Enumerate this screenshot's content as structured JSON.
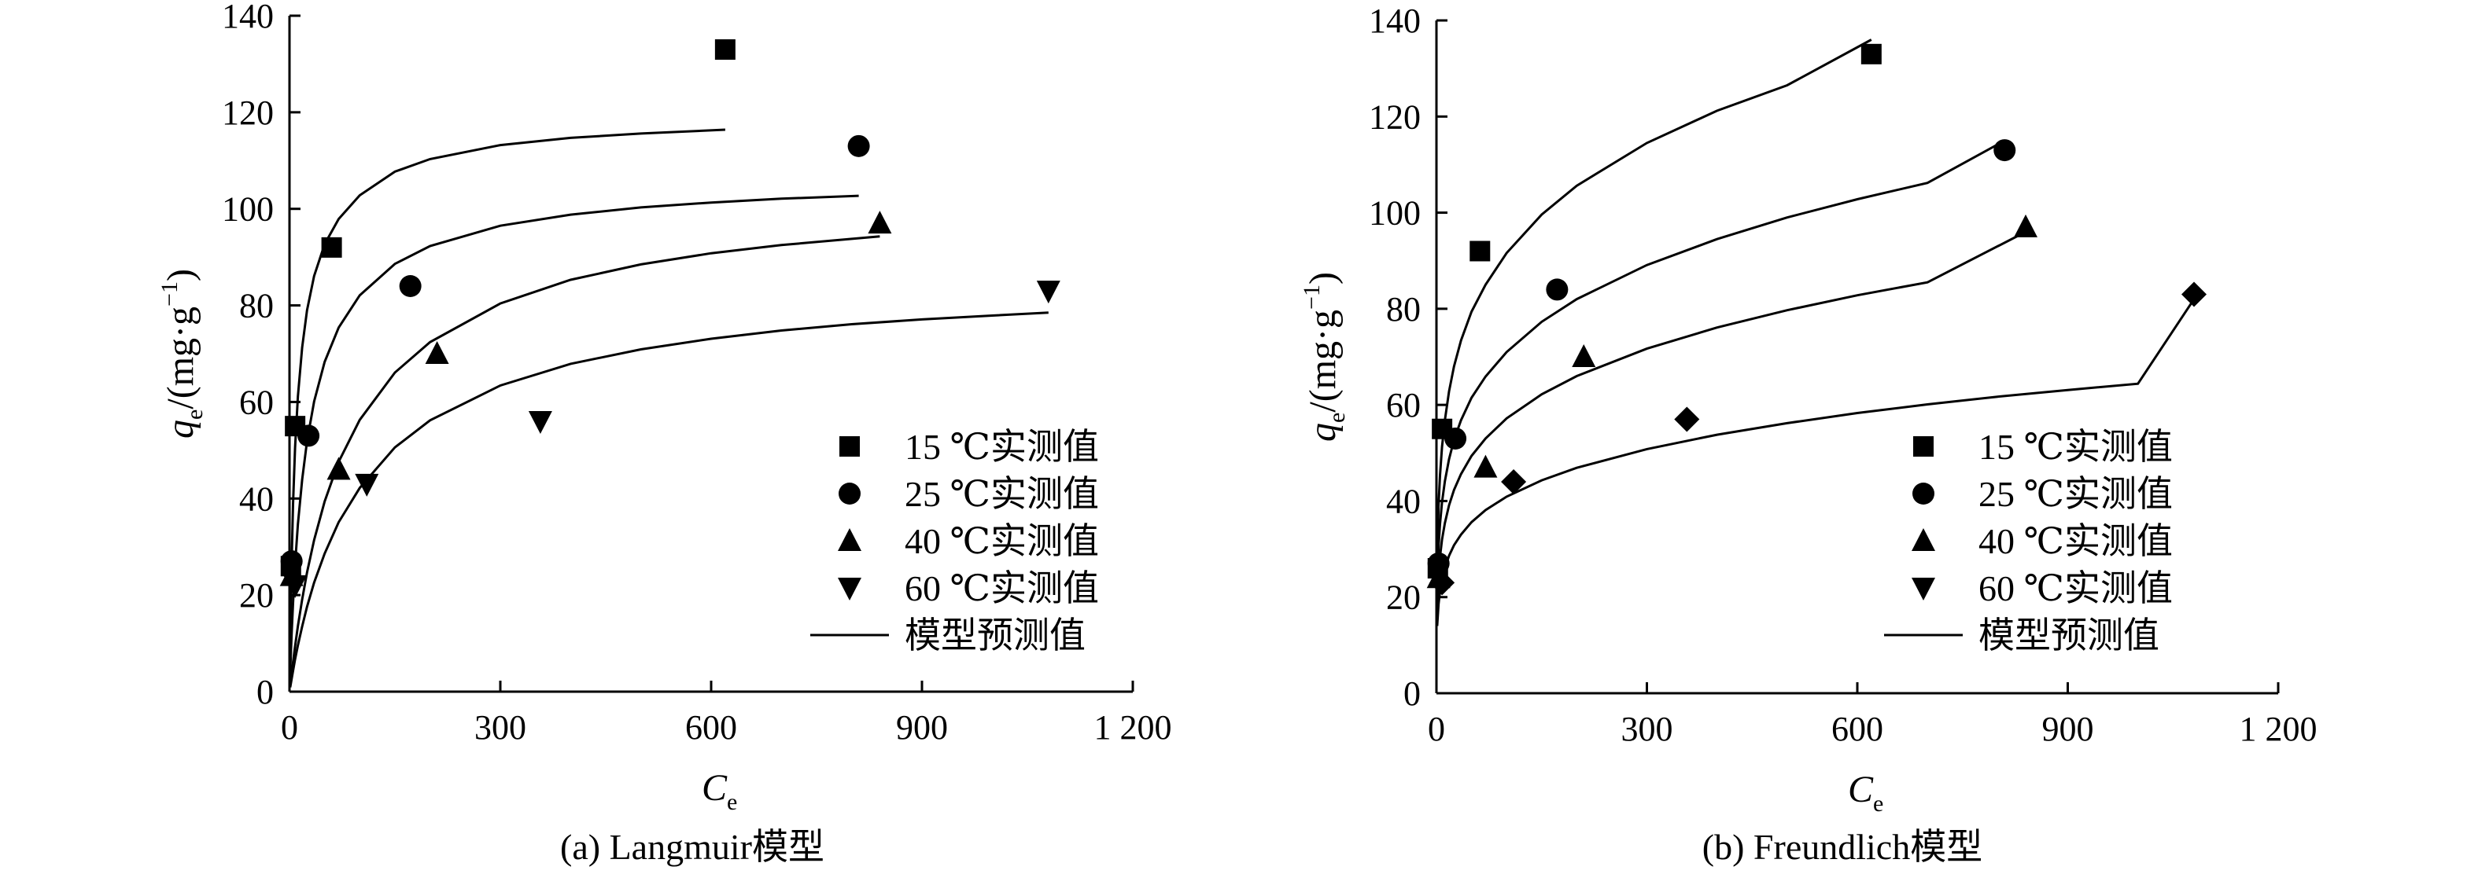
{
  "chart_data": [
    {
      "type": "scatter",
      "panel": "a",
      "caption": "(a) Langmuir模型",
      "xlabel": {
        "main": "C",
        "sub": "e"
      },
      "ylabel": {
        "main": "q",
        "sub": "e",
        "rest": "/(mg·g",
        "sup": "−1",
        "end": ")"
      },
      "xlim": [
        0,
        1200
      ],
      "ylim": [
        0,
        140
      ],
      "xticks": [
        {
          "value": 0,
          "label": "0"
        },
        {
          "value": 300,
          "label": "300"
        },
        {
          "value": 600,
          "label": "600"
        },
        {
          "value": 900,
          "label": "900"
        },
        {
          "value": 1200,
          "label": "1 200"
        }
      ],
      "yticks": [
        {
          "value": 0,
          "label": "0"
        },
        {
          "value": 20,
          "label": "20"
        },
        {
          "value": 40,
          "label": "40"
        },
        {
          "value": 60,
          "label": "60"
        },
        {
          "value": 80,
          "label": "80"
        },
        {
          "value": 100,
          "label": "100"
        },
        {
          "value": 120,
          "label": "120"
        },
        {
          "value": 140,
          "label": "140"
        }
      ],
      "legend_position": "bottom-right",
      "legend": [
        {
          "label": "15 ℃实测值",
          "marker": "square"
        },
        {
          "label": "25 ℃实测值",
          "marker": "circle"
        },
        {
          "label": "40 ℃实测值",
          "marker": "triangle-up"
        },
        {
          "label": "60 ℃实测值",
          "marker": "triangle-down"
        },
        {
          "label": "模型预测值",
          "marker": "line"
        }
      ],
      "series": [
        {
          "marker": "square",
          "x": [
            2,
            8,
            60,
            620
          ],
          "y": [
            26,
            55,
            92,
            133
          ]
        },
        {
          "marker": "circle",
          "x": [
            3,
            27,
            172,
            810
          ],
          "y": [
            27,
            53,
            84,
            113
          ]
        },
        {
          "marker": "triangle-up",
          "x": [
            3,
            70,
            210,
            840
          ],
          "y": [
            24,
            46,
            70,
            97
          ]
        },
        {
          "marker": "triangle-down",
          "x": [
            8,
            110,
            357,
            1080
          ],
          "y": [
            22,
            43,
            56,
            83
          ]
        }
      ],
      "fits": [
        {
          "x": [
            1,
            3,
            5,
            8,
            12,
            18,
            25,
            35,
            50,
            70,
            100,
            150,
            200,
            300,
            400,
            500,
            620
          ],
          "y": [
            10.1,
            26.6,
            38.8,
            50.6,
            61.2,
            71.3,
            79.0,
            86.1,
            92.7,
            97.9,
            102.8,
            107.7,
            110.3,
            113.2,
            114.7,
            115.6,
            116.4
          ]
        },
        {
          "x": [
            1,
            3,
            5,
            8,
            12,
            18,
            25,
            35,
            50,
            70,
            100,
            150,
            200,
            300,
            400,
            500,
            600,
            700,
            810
          ],
          "y": [
            4.2,
            11.9,
            18.3,
            26.3,
            34.7,
            43.9,
            51.9,
            60.1,
            68.3,
            75.4,
            82.1,
            88.6,
            92.3,
            96.5,
            98.8,
            100.3,
            101.3,
            102.1,
            102.7
          ]
        },
        {
          "x": [
            1,
            3,
            5,
            8,
            12,
            18,
            25,
            35,
            50,
            70,
            100,
            150,
            200,
            300,
            400,
            500,
            600,
            700,
            840
          ],
          "y": [
            1.3,
            3.7,
            6.1,
            9.4,
            13.6,
            19.1,
            24.7,
            31.4,
            39.4,
            47.6,
            56.3,
            66.1,
            72.4,
            80.4,
            85.3,
            88.5,
            90.8,
            92.5,
            94.3
          ]
        },
        {
          "x": [
            1,
            3,
            5,
            8,
            12,
            18,
            25,
            35,
            50,
            70,
            100,
            150,
            200,
            300,
            400,
            500,
            600,
            700,
            800,
            900,
            1000,
            1080
          ],
          "y": [
            0.9,
            2.6,
            4.3,
            6.7,
            9.6,
            13.5,
            17.6,
            22.6,
            28.6,
            35.1,
            42.2,
            50.6,
            56.2,
            63.4,
            67.9,
            70.9,
            73.1,
            74.8,
            76.1,
            77.1,
            77.9,
            78.5
          ]
        }
      ]
    },
    {
      "type": "scatter",
      "panel": "b",
      "caption": "(b) Freundlich模型",
      "xlabel": {
        "main": "C",
        "sub": "e"
      },
      "ylabel": {
        "main": "q",
        "sub": "e",
        "rest": "/(mg·g",
        "sup": "−1",
        "end": ")"
      },
      "xlim": [
        0,
        1200
      ],
      "ylim": [
        0,
        140
      ],
      "xticks": [
        {
          "value": 0,
          "label": "0"
        },
        {
          "value": 300,
          "label": "300"
        },
        {
          "value": 600,
          "label": "600"
        },
        {
          "value": 900,
          "label": "900"
        },
        {
          "value": 1200,
          "label": "1 200"
        }
      ],
      "yticks": [
        {
          "value": 0,
          "label": "0"
        },
        {
          "value": 20,
          "label": "20"
        },
        {
          "value": 40,
          "label": "40"
        },
        {
          "value": 60,
          "label": "60"
        },
        {
          "value": 80,
          "label": "80"
        },
        {
          "value": 100,
          "label": "100"
        },
        {
          "value": 120,
          "label": "120"
        },
        {
          "value": 140,
          "label": "140"
        }
      ],
      "legend_position": "bottom-right",
      "legend": [
        {
          "label": "15 ℃实测值",
          "marker": "square"
        },
        {
          "label": "25 ℃实测值",
          "marker": "circle"
        },
        {
          "label": "40 ℃实测值",
          "marker": "triangle-up"
        },
        {
          "label": "60 ℃实测值",
          "marker": "triangle-down"
        },
        {
          "label": "模型预测值",
          "marker": "line"
        }
      ],
      "series": [
        {
          "marker": "square",
          "x": [
            2,
            8,
            62,
            620
          ],
          "y": [
            26,
            55,
            92,
            133
          ]
        },
        {
          "marker": "circle",
          "x": [
            3,
            27,
            172,
            810
          ],
          "y": [
            27,
            53,
            84,
            113
          ]
        },
        {
          "marker": "triangle-up",
          "x": [
            3,
            70,
            210,
            840
          ],
          "y": [
            24,
            47,
            70,
            97
          ]
        },
        {
          "marker": "diamond",
          "x": [
            8,
            110,
            357,
            1080
          ],
          "y": [
            23,
            44,
            57,
            83
          ]
        }
      ],
      "fits": [
        {
          "x": [
            1,
            3,
            5,
            8,
            12,
            18,
            25,
            35,
            50,
            70,
            100,
            150,
            200,
            300,
            400,
            500,
            620
          ],
          "y": [
            28,
            39.2,
            45.3,
            51.3,
            56.8,
            62.8,
            68.0,
            73.4,
            79.4,
            85.0,
            91.6,
            99.6,
            105.6,
            114.5,
            121.2,
            126.5,
            136.0
          ]
        },
        {
          "x": [
            1,
            3,
            5,
            8,
            12,
            18,
            25,
            35,
            50,
            70,
            100,
            150,
            200,
            300,
            400,
            500,
            600,
            700,
            810
          ],
          "y": [
            22,
            30.6,
            35.2,
            39.8,
            44.1,
            48.7,
            52.7,
            56.8,
            61.5,
            65.9,
            71.0,
            77.3,
            82.0,
            89.1,
            94.5,
            99.0,
            102.8,
            106.2,
            115.0
          ]
        },
        {
          "x": [
            1,
            3,
            5,
            8,
            12,
            18,
            25,
            35,
            50,
            70,
            100,
            150,
            200,
            300,
            400,
            500,
            600,
            700,
            840
          ],
          "y": [
            18,
            24.7,
            28.4,
            32.0,
            35.4,
            39.1,
            42.3,
            45.6,
            49.4,
            53.0,
            57.2,
            62.2,
            66.0,
            71.7,
            76.1,
            79.7,
            82.8,
            85.5,
            96.0
          ]
        },
        {
          "x": [
            1,
            3,
            5,
            8,
            12,
            18,
            25,
            35,
            50,
            70,
            100,
            150,
            200,
            300,
            400,
            500,
            600,
            700,
            800,
            900,
            1000,
            1080
          ],
          "y": [
            14,
            18.6,
            21.2,
            23.7,
            26.0,
            28.6,
            30.8,
            33.0,
            35.6,
            38.1,
            40.9,
            44.3,
            46.9,
            50.8,
            53.8,
            56.2,
            58.3,
            60.1,
            61.7,
            63.1,
            64.4,
            82.0
          ]
        }
      ]
    }
  ]
}
